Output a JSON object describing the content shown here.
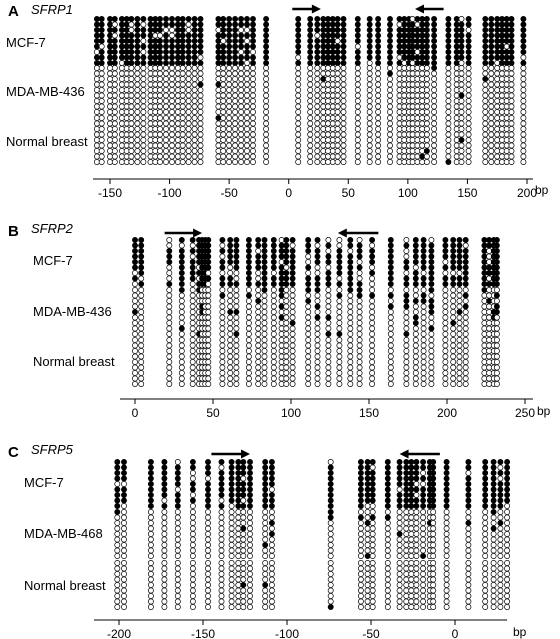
{
  "panels": [
    {
      "letter": "A",
      "gene": "SFRP1",
      "unit": "bp",
      "rows": [
        {
          "label": "MCF-7",
          "fill": 0.93
        },
        {
          "label": "MDA-MB-436",
          "fill": 0.01
        },
        {
          "label": "Normal breast",
          "fill": 0.01
        }
      ],
      "ticks": [
        -150,
        -100,
        -50,
        0,
        50,
        100,
        150,
        200
      ],
      "axis_range": [
        -170,
        210
      ],
      "arrows": [
        {
          "from": 3,
          "to": 27,
          "direction": "right"
        },
        {
          "from": 130,
          "to": 106,
          "direction": "left"
        }
      ],
      "cpg_positions": [
        -161,
        -157,
        -150,
        -146,
        -140,
        -136,
        -132,
        -127,
        -122,
        -116,
        -112,
        -108,
        -103,
        -98,
        -93,
        -89,
        -84,
        -79,
        -74,
        -59,
        -55,
        -50,
        -45,
        -40,
        -35,
        -30,
        -19,
        8,
        18,
        24,
        29,
        33,
        37,
        41,
        46,
        58,
        68,
        75,
        85,
        93,
        97,
        101,
        104,
        108,
        112,
        116,
        122,
        134,
        141,
        145,
        151,
        165,
        170,
        175,
        179,
        183,
        187,
        197
      ]
    },
    {
      "letter": "B",
      "gene": "SFRP2",
      "unit": "bp",
      "rows": [
        {
          "label": "MCF-7",
          "fill": 0.82
        },
        {
          "label": "MDA-MB-436",
          "fill": 0.18
        },
        {
          "label": "Normal breast",
          "fill": 0.0
        }
      ],
      "ticks": [
        0,
        50,
        100,
        150,
        200,
        250
      ],
      "axis_range": [
        -8,
        260
      ],
      "arrows": [
        {
          "from": 19,
          "to": 43,
          "direction": "right"
        },
        {
          "from": 156,
          "to": 130,
          "direction": "left"
        }
      ],
      "cpg_positions": [
        0,
        4,
        22,
        30,
        37,
        41,
        43,
        45,
        47,
        56,
        61,
        65,
        73,
        79,
        83,
        89,
        94,
        97,
        101,
        111,
        117,
        124,
        131,
        138,
        144,
        152,
        164,
        174,
        180,
        185,
        190,
        199,
        204,
        208,
        212,
        224,
        227,
        230,
        232
      ]
    },
    {
      "letter": "C",
      "gene": "SFRP5",
      "unit": "bp",
      "rows": [
        {
          "label": "MCF-7",
          "fill": 0.88
        },
        {
          "label": "MDA-MB-468",
          "fill": 0.09
        },
        {
          "label": "Normal breast",
          "fill": 0.01
        }
      ],
      "ticks": [
        -200,
        -150,
        -100,
        -50,
        0
      ],
      "axis_range": [
        -213,
        38
      ],
      "arrows": [
        {
          "from": -145,
          "to": -122,
          "direction": "right"
        },
        {
          "from": -9,
          "to": -33,
          "direction": "left"
        }
      ],
      "cpg_positions": [
        -201,
        -197,
        -181,
        -173,
        -165,
        -156,
        -147,
        -139,
        -133,
        -129,
        -126,
        -122,
        -113,
        -109,
        -74,
        -56,
        -52,
        -49,
        -40,
        -33,
        -29,
        -26,
        -23,
        -19,
        -15,
        -13,
        -5,
        8,
        18,
        23,
        27,
        31
      ]
    }
  ]
}
